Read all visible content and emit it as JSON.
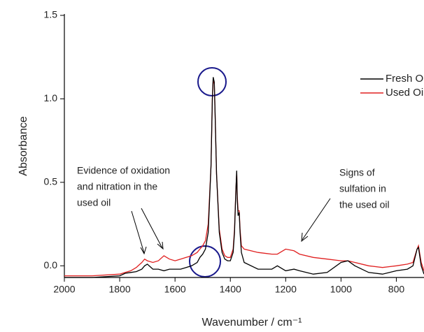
{
  "chart_data": {
    "type": "line",
    "x_label": "Wavenumber / cm⁻¹",
    "y_label": "Absorbance",
    "x": [
      2000,
      1900,
      1800,
      1780,
      1760,
      1740,
      1720,
      1710,
      1700,
      1680,
      1660,
      1640,
      1620,
      1600,
      1580,
      1560,
      1540,
      1520,
      1510,
      1500,
      1490,
      1480,
      1470,
      1465,
      1462,
      1458,
      1455,
      1450,
      1440,
      1430,
      1420,
      1410,
      1400,
      1390,
      1385,
      1380,
      1377,
      1375,
      1372,
      1368,
      1365,
      1360,
      1350,
      1300,
      1250,
      1230,
      1200,
      1170,
      1150,
      1100,
      1050,
      1000,
      975,
      950,
      900,
      850,
      800,
      760,
      740,
      725,
      720,
      710,
      700
    ],
    "series": [
      {
        "name": "Fresh Oil",
        "color": "#000000",
        "values": [
          -0.07,
          -0.07,
          -0.06,
          -0.045,
          -0.04,
          -0.035,
          -0.02,
          0.0,
          0.01,
          -0.02,
          -0.02,
          -0.03,
          -0.02,
          -0.02,
          -0.02,
          -0.01,
          0.0,
          0.02,
          0.05,
          0.07,
          0.1,
          0.2,
          0.6,
          1.0,
          1.13,
          1.1,
          0.9,
          0.55,
          0.2,
          0.08,
          0.04,
          0.03,
          0.03,
          0.08,
          0.2,
          0.45,
          0.57,
          0.4,
          0.3,
          0.32,
          0.2,
          0.08,
          0.02,
          -0.02,
          -0.02,
          0.0,
          -0.03,
          -0.02,
          -0.03,
          -0.05,
          -0.04,
          0.02,
          0.03,
          0.0,
          -0.04,
          -0.05,
          -0.03,
          -0.02,
          0.0,
          0.1,
          0.11,
          0.0,
          -0.05
        ]
      },
      {
        "name": "Used Oil",
        "color": "#e02020",
        "values": [
          -0.06,
          -0.06,
          -0.05,
          -0.04,
          -0.03,
          -0.01,
          0.02,
          0.04,
          0.03,
          0.02,
          0.03,
          0.06,
          0.04,
          0.03,
          0.04,
          0.05,
          0.06,
          0.08,
          0.1,
          0.12,
          0.15,
          0.25,
          0.6,
          1.0,
          1.11,
          1.09,
          0.9,
          0.55,
          0.22,
          0.1,
          0.06,
          0.05,
          0.05,
          0.1,
          0.22,
          0.45,
          0.56,
          0.42,
          0.33,
          0.33,
          0.22,
          0.12,
          0.1,
          0.08,
          0.07,
          0.07,
          0.1,
          0.09,
          0.07,
          0.05,
          0.04,
          0.03,
          0.03,
          0.02,
          0.0,
          -0.01,
          0.0,
          0.01,
          0.02,
          0.1,
          0.12,
          0.02,
          -0.03
        ]
      }
    ],
    "xlim": [
      2000,
      700
    ],
    "xticks": [
      2000,
      1800,
      1600,
      1400,
      1200,
      1000,
      800
    ],
    "ylim": [
      -0.07,
      1.5
    ],
    "yticks": [
      {
        "value": 0,
        "label": "0.0"
      },
      0.5,
      {
        "value": 1,
        "label": "1.0"
      },
      1.5
    ],
    "annotations": [
      [
        "Evidence of oxidation",
        "and nitration in the",
        "used oil"
      ],
      [
        "Signs of",
        "sulfation in",
        "the used oil"
      ]
    ]
  }
}
